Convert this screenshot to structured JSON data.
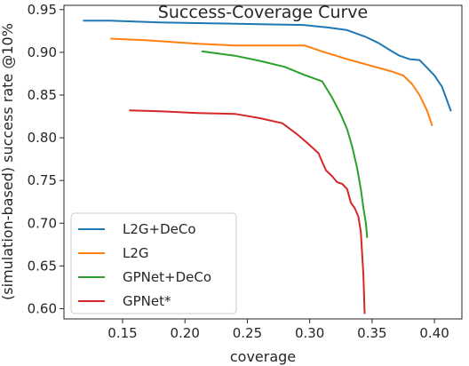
{
  "chart_data": {
    "type": "line",
    "title": "Success-Coverage Curve",
    "xlabel": "coverage",
    "ylabel": "(simulation-based) success rate @10%",
    "xlim": [
      0.103,
      0.422
    ],
    "ylim": [
      0.588,
      0.955
    ],
    "xticks": [
      0.15,
      0.2,
      0.25,
      0.3,
      0.35,
      0.4
    ],
    "yticks": [
      0.6,
      0.65,
      0.7,
      0.75,
      0.8,
      0.85,
      0.9,
      0.95
    ],
    "xtick_labels": [
      "0.15",
      "0.20",
      "0.25",
      "0.30",
      "0.35",
      "0.40"
    ],
    "ytick_labels": [
      "0.60",
      "0.65",
      "0.70",
      "0.75",
      "0.80",
      "0.85",
      "0.90",
      "0.95"
    ],
    "grid": false,
    "legend_position": "lower-left",
    "series": [
      {
        "name": "L2G+DeCo",
        "color": "#1f77b4",
        "x": [
          0.119,
          0.14,
          0.18,
          0.22,
          0.26,
          0.295,
          0.315,
          0.33,
          0.345,
          0.355,
          0.365,
          0.372,
          0.38,
          0.388,
          0.394,
          0.4,
          0.406,
          0.413
        ],
        "y": [
          0.937,
          0.937,
          0.935,
          0.934,
          0.933,
          0.932,
          0.929,
          0.926,
          0.918,
          0.911,
          0.902,
          0.896,
          0.892,
          0.891,
          0.882,
          0.873,
          0.86,
          0.832
        ]
      },
      {
        "name": "L2G",
        "color": "#ff7f0e",
        "x": [
          0.141,
          0.17,
          0.21,
          0.24,
          0.27,
          0.296,
          0.31,
          0.33,
          0.35,
          0.365,
          0.375,
          0.382,
          0.388,
          0.394,
          0.398
        ],
        "y": [
          0.916,
          0.914,
          0.91,
          0.908,
          0.908,
          0.908,
          0.901,
          0.892,
          0.884,
          0.878,
          0.873,
          0.863,
          0.85,
          0.832,
          0.815
        ]
      },
      {
        "name": "GPNet+DeCo",
        "color": "#2ca02c",
        "x": [
          0.214,
          0.24,
          0.26,
          0.28,
          0.295,
          0.31,
          0.318,
          0.325,
          0.33,
          0.334,
          0.338,
          0.341,
          0.343,
          0.345,
          0.346
        ],
        "y": [
          0.901,
          0.896,
          0.89,
          0.883,
          0.874,
          0.866,
          0.847,
          0.827,
          0.81,
          0.79,
          0.765,
          0.74,
          0.718,
          0.7,
          0.684
        ]
      },
      {
        "name": "GPNet*",
        "color": "#d62728",
        "x": [
          0.156,
          0.18,
          0.21,
          0.24,
          0.26,
          0.278,
          0.29,
          0.298,
          0.307,
          0.313,
          0.318,
          0.322,
          0.326,
          0.33,
          0.333,
          0.336,
          0.339,
          0.341,
          0.343,
          0.344
        ],
        "y": [
          0.832,
          0.831,
          0.829,
          0.828,
          0.823,
          0.817,
          0.804,
          0.794,
          0.782,
          0.762,
          0.755,
          0.748,
          0.746,
          0.74,
          0.724,
          0.718,
          0.708,
          0.69,
          0.64,
          0.595
        ]
      }
    ]
  }
}
